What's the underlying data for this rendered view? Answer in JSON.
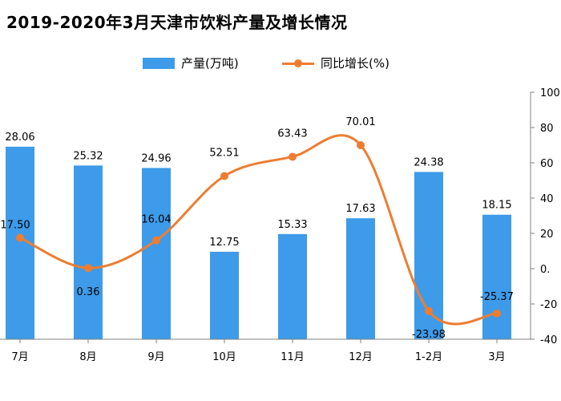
{
  "title": "2019-2020年3月天津市饮料产量及增长情况",
  "legend": {
    "bar_label": "产量(万吨)",
    "line_label": "同比增长(%)"
  },
  "colors": {
    "bar": "#3d9be9",
    "line": "#ed7d31",
    "axis": "#808080"
  },
  "chart_data": {
    "type": "bar",
    "title": "2019-2020年3月天津市饮料产量及增长情况",
    "categories": [
      "7月",
      "8月",
      "9月",
      "10月",
      "11月",
      "12月",
      "1-2月",
      "3月"
    ],
    "series": [
      {
        "name": "产量(万吨)",
        "type": "bar",
        "axis": "left",
        "values": [
          28.06,
          25.32,
          24.96,
          12.75,
          15.33,
          17.63,
          24.38,
          18.15
        ],
        "labels": [
          "28.06",
          "25.32",
          "24.96",
          "12.75",
          "15.33",
          "17.63",
          "24.38",
          "18.15"
        ]
      },
      {
        "name": "同比增长(%)",
        "type": "line",
        "axis": "right",
        "values": [
          17.5,
          0.36,
          16.04,
          52.51,
          63.43,
          70.01,
          -23.98,
          -25.37
        ],
        "labels": [
          "17.50",
          "0.36",
          "16.04",
          "52.51",
          "63.43",
          "70.01",
          "-23.98",
          "-25.37"
        ]
      }
    ],
    "y_left_range": [
      0,
      36
    ],
    "y_right_range": [
      -40,
      100
    ],
    "y_right_ticks": [
      "-40",
      "-20",
      "0.",
      "20",
      "40",
      "60",
      "80",
      "100"
    ],
    "grid": false,
    "legend_position": "top-center"
  }
}
